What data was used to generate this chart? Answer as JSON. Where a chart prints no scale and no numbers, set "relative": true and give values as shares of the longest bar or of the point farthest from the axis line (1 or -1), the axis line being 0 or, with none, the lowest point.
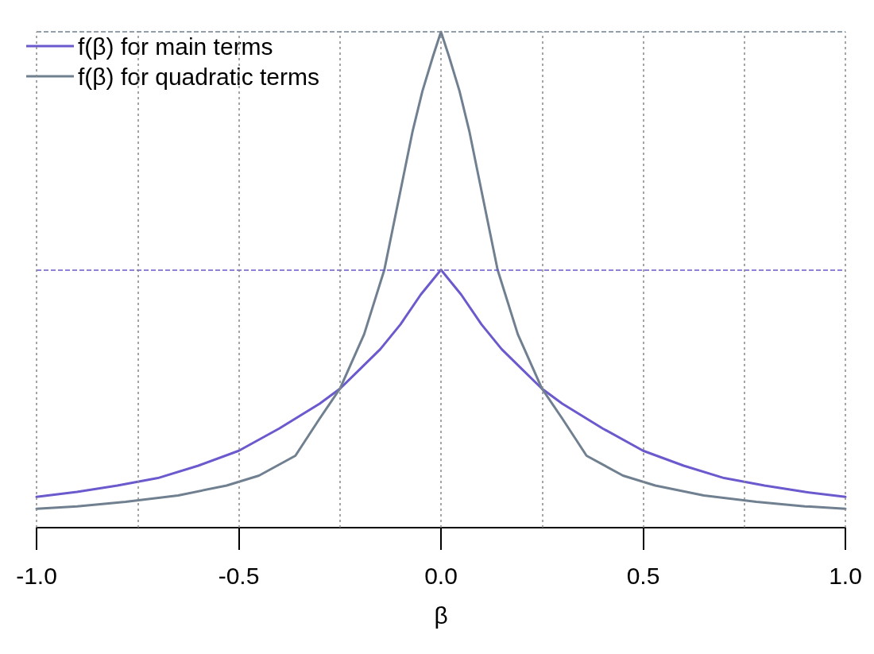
{
  "chart_data": {
    "type": "line",
    "relative": true,
    "xlabel": "β",
    "xlim": [
      -1,
      1
    ],
    "xticks": [
      {
        "value": -1,
        "label": "-1.0"
      },
      {
        "value": -0.75,
        "label": null
      },
      {
        "value": -0.5,
        "label": "-0.5"
      },
      {
        "value": -0.25,
        "label": null
      },
      {
        "value": 0,
        "label": "0.0"
      },
      {
        "value": 0.25,
        "label": null
      },
      {
        "value": 0.5,
        "label": "0.5"
      },
      {
        "value": 0.75,
        "label": null
      },
      {
        "value": 1,
        "label": "1.0"
      }
    ],
    "grid": "x",
    "legend": "top left",
    "marker": "none",
    "line_style": "solid",
    "series": [
      {
        "name": "f(β) for main terms",
        "color": "#6a5acd",
        "x": [
          -1,
          -0.9,
          -0.8,
          -0.7,
          -0.6,
          -0.5,
          -0.4,
          -0.3,
          -0.25,
          -0.2,
          -0.15,
          -0.1,
          -0.05,
          0,
          0.05,
          0.1,
          0.15,
          0.2,
          0.25,
          0.3,
          0.4,
          0.5,
          0.6,
          0.7,
          0.8,
          0.9,
          1
        ],
        "values": [
          0.062,
          0.072,
          0.085,
          0.1,
          0.125,
          0.155,
          0.2,
          0.25,
          0.28,
          0.32,
          0.36,
          0.41,
          0.47,
          0.52,
          0.47,
          0.41,
          0.36,
          0.32,
          0.28,
          0.25,
          0.2,
          0.155,
          0.125,
          0.1,
          0.085,
          0.072,
          0.062
        ]
      },
      {
        "name": "f(β) for quadratic terms",
        "color": "#708090",
        "x": [
          -1,
          -0.9,
          -0.78,
          -0.65,
          -0.53,
          -0.45,
          -0.36,
          -0.3,
          -0.25,
          -0.19,
          -0.14,
          -0.09,
          -0.07,
          -0.046,
          -0.02,
          0,
          0.02,
          0.046,
          0.07,
          0.09,
          0.14,
          0.19,
          0.25,
          0.3,
          0.36,
          0.45,
          0.53,
          0.65,
          0.78,
          0.9,
          1
        ],
        "values": [
          0.038,
          0.043,
          0.052,
          0.065,
          0.085,
          0.105,
          0.145,
          0.22,
          0.28,
          0.39,
          0.52,
          0.72,
          0.8,
          0.88,
          0.95,
          1,
          0.95,
          0.88,
          0.8,
          0.72,
          0.52,
          0.39,
          0.28,
          0.22,
          0.145,
          0.105,
          0.085,
          0.065,
          0.052,
          0.043,
          0.038
        ]
      }
    ],
    "ref_lines": [
      {
        "axis": "y",
        "value": 1,
        "color": "#708090",
        "line_style": "dashed"
      },
      {
        "axis": "y",
        "value": 0.52,
        "color": "#6a5acd",
        "line_style": "dashed"
      }
    ]
  }
}
